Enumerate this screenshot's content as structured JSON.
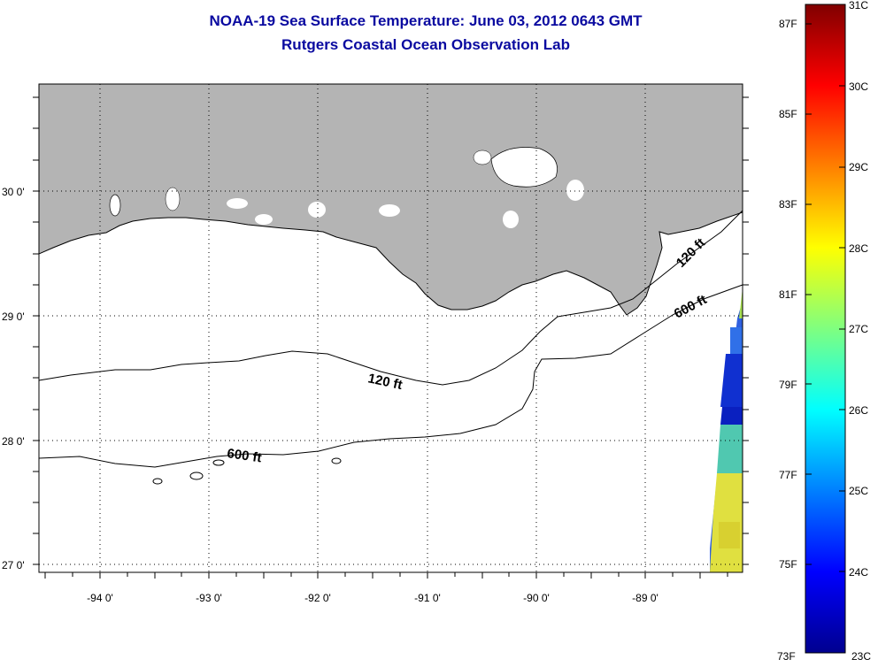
{
  "title": "NOAA-19 Sea Surface Temperature:  June 03, 2012 0643 GMT",
  "subtitle": "Rutgers Coastal Ocean Observation Lab",
  "map": {
    "lon_range": [
      -94.55,
      -88.25
    ],
    "lat_range": [
      26.93,
      29.87
    ],
    "lon_labels": [
      "-94 0'",
      "-93 0'",
      "-92 0'",
      "-91 0'",
      "-90 0'",
      "-89 0'"
    ],
    "lon_values": [
      -94,
      -93,
      -92,
      -91,
      -90,
      -89
    ],
    "lat_labels": [
      "27 0'",
      "28 0'",
      "29 0'",
      "30 0'"
    ],
    "lat_values": [
      27,
      28,
      29,
      30
    ],
    "grid": "dotted",
    "land_color": "#b4b4b4",
    "water_color": "#ffffff",
    "contours": [
      {
        "label": "120 ft"
      },
      {
        "label": "600 ft"
      },
      {
        "label": "120 ft"
      },
      {
        "label": "600 ft"
      }
    ]
  },
  "colorbar": {
    "celsius_labels": [
      "31C",
      "30C",
      "29C",
      "28C",
      "27C",
      "26C",
      "25C",
      "24C",
      "23C"
    ],
    "fahrenheit_labels": [
      "87F",
      "85F",
      "83F",
      "81F",
      "79F",
      "77F",
      "75F",
      "73F"
    ],
    "celsius_range": [
      23,
      31
    ],
    "fahrenheit_values": [
      87,
      85,
      83,
      81,
      79,
      77,
      75,
      73
    ],
    "colormap": "jet"
  }
}
